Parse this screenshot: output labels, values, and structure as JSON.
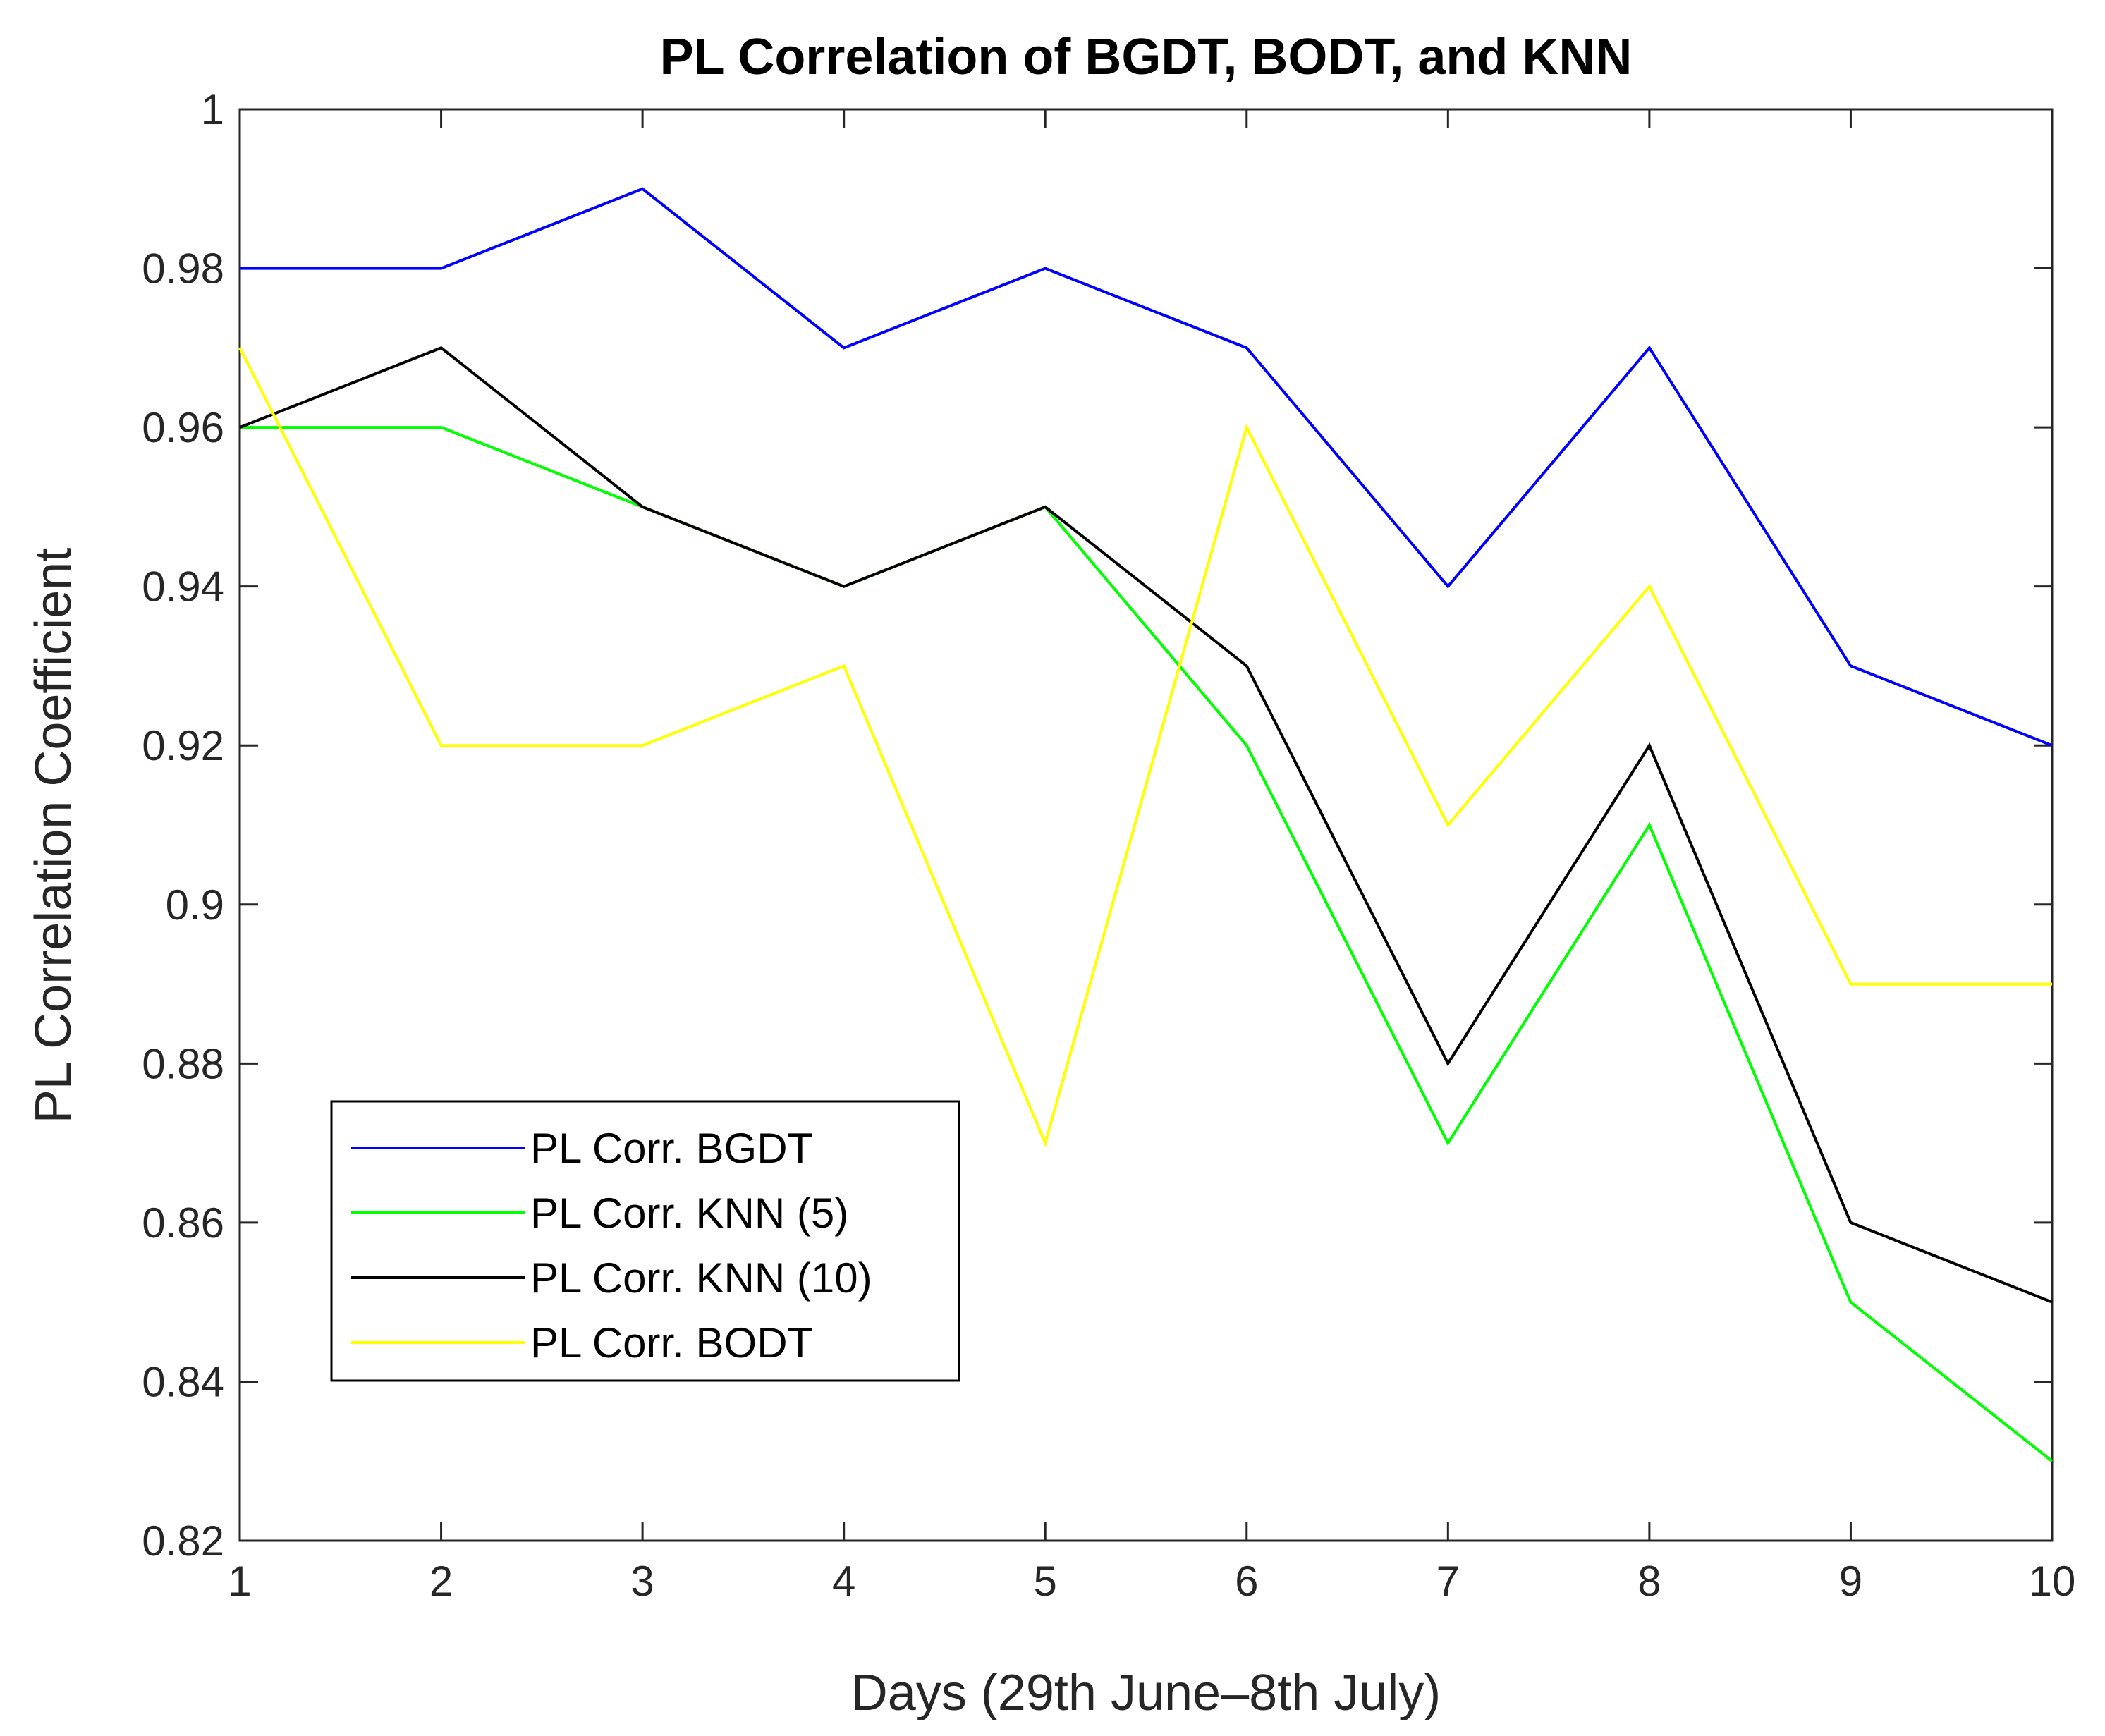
{
  "chart_data": {
    "type": "line",
    "title": "PL Correlation of BGDT, BODT, and KNN",
    "xlabel": "Days (29th June–8th July)",
    "ylabel": "PL Correlation Coefficient",
    "x": [
      1,
      2,
      3,
      4,
      5,
      6,
      7,
      8,
      9,
      10
    ],
    "xlim": [
      1,
      10
    ],
    "ylim": [
      0.82,
      1.0
    ],
    "xticks": [
      1,
      2,
      3,
      4,
      5,
      6,
      7,
      8,
      9,
      10
    ],
    "yticks": [
      0.82,
      0.84,
      0.86,
      0.88,
      0.9,
      0.92,
      0.94,
      0.96,
      0.98,
      1
    ],
    "ytick_labels": [
      "0.82",
      "0.84",
      "0.86",
      "0.88",
      "0.9",
      "0.92",
      "0.94",
      "0.96",
      "0.98",
      "1"
    ],
    "grid": false,
    "legend_position": "bottom-left",
    "series": [
      {
        "name": "PL Corr. BGDT",
        "color": "#0000ff",
        "values": [
          0.98,
          0.98,
          0.99,
          0.97,
          0.98,
          0.97,
          0.94,
          0.97,
          0.93,
          0.92
        ]
      },
      {
        "name": "PL Corr. KNN (5)",
        "color": "#00ff00",
        "values": [
          0.96,
          0.96,
          0.95,
          0.94,
          0.95,
          0.92,
          0.87,
          0.91,
          0.85,
          0.83
        ]
      },
      {
        "name": "PL Corr. KNN (10)",
        "color": "#000000",
        "values": [
          0.96,
          0.97,
          0.95,
          0.94,
          0.95,
          0.93,
          0.88,
          0.92,
          0.86,
          0.85
        ]
      },
      {
        "name": "PL Corr. BODT",
        "color": "#ffff00",
        "values": [
          0.97,
          0.92,
          0.92,
          0.93,
          0.87,
          0.96,
          0.91,
          0.94,
          0.89,
          0.89
        ]
      }
    ]
  }
}
